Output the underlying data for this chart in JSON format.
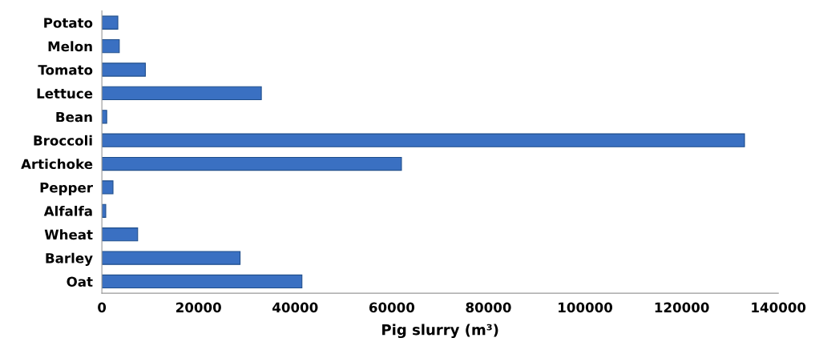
{
  "chart_data": {
    "type": "bar",
    "orientation": "horizontal",
    "xlabel": "Pig slurry (m³)",
    "categories": [
      "Potato",
      "Melon",
      "Tomato",
      "Lettuce",
      "Bean",
      "Broccoli",
      "Artichoke",
      "Pepper",
      "Alfalfa",
      "Wheat",
      "Barley",
      "Oat"
    ],
    "values": [
      3300,
      3600,
      9000,
      33000,
      1000,
      133000,
      62000,
      2300,
      800,
      7400,
      28600,
      41400
    ],
    "color": "#3a70c2",
    "xlim": [
      0,
      140000
    ],
    "xticks": [
      0,
      20000,
      40000,
      60000,
      80000,
      100000,
      120000,
      140000
    ],
    "grid": false
  }
}
